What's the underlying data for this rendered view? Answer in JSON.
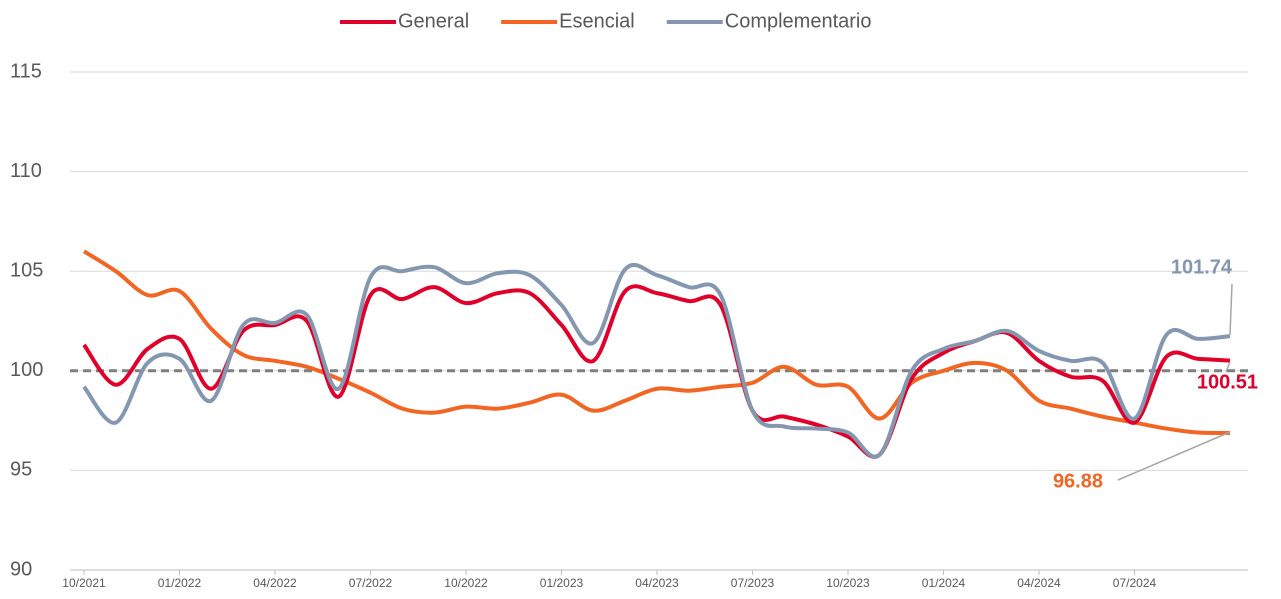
{
  "chart_data": {
    "type": "line",
    "categories": [
      "10/2021",
      null,
      null,
      "01/2022",
      null,
      null,
      "04/2022",
      null,
      null,
      "07/2022",
      null,
      null,
      "10/2022",
      null,
      null,
      "01/2023",
      null,
      null,
      "04/2023",
      null,
      null,
      "07/2023",
      null,
      null,
      "10/2023",
      null,
      null,
      "01/2024",
      null,
      null,
      "04/2024",
      null,
      null,
      "07/2024",
      null,
      null,
      null
    ],
    "series": [
      {
        "name": "General",
        "color": "#e0002a",
        "values": [
          101.3,
          99.3,
          101.1,
          101.6,
          99.1,
          102.0,
          102.3,
          102.5,
          98.7,
          103.8,
          103.6,
          104.2,
          103.4,
          103.9,
          103.9,
          102.3,
          100.5,
          104.0,
          103.9,
          103.5,
          103.3,
          98.0,
          97.7,
          97.3,
          96.7,
          95.8,
          99.6,
          100.9,
          101.5,
          101.9,
          100.5,
          99.7,
          99.5,
          97.4,
          100.7,
          100.6,
          100.51
        ]
      },
      {
        "name": "Esencial",
        "color": "#f26522",
        "values": [
          106.0,
          105.0,
          103.8,
          104.0,
          102.1,
          100.8,
          100.5,
          100.2,
          99.6,
          98.9,
          98.1,
          97.9,
          98.2,
          98.1,
          98.4,
          98.8,
          98.0,
          98.5,
          99.1,
          99.0,
          99.2,
          99.4,
          100.2,
          99.3,
          99.2,
          97.6,
          99.4,
          100.0,
          100.4,
          100.0,
          98.5,
          98.1,
          97.7,
          97.4,
          97.1,
          96.9,
          96.88
        ]
      },
      {
        "name": "Complementario",
        "color": "#8497b0",
        "values": [
          99.2,
          97.4,
          100.4,
          100.6,
          98.5,
          102.3,
          102.4,
          102.8,
          99.1,
          104.7,
          105.0,
          105.2,
          104.4,
          104.9,
          104.8,
          103.3,
          101.4,
          105.1,
          104.8,
          104.2,
          103.8,
          98.0,
          97.2,
          97.1,
          96.9,
          95.8,
          100.0,
          101.1,
          101.5,
          102.0,
          101.0,
          100.5,
          100.4,
          97.6,
          101.8,
          101.6,
          101.74
        ]
      }
    ],
    "ylim": [
      90,
      115
    ],
    "yticks": [
      90,
      95,
      100,
      105,
      110,
      115
    ],
    "grid": true,
    "reference_line": 100,
    "legend": "top"
  }
}
